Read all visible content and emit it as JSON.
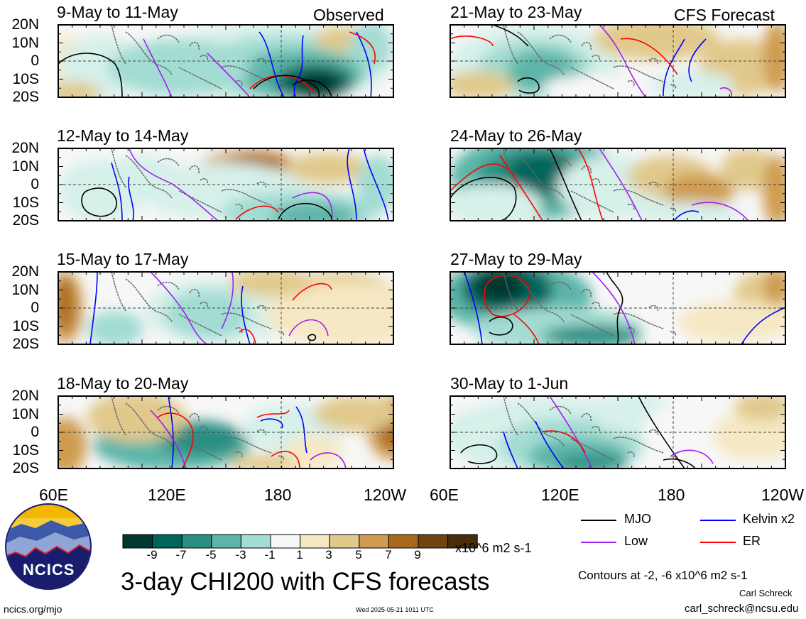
{
  "panels": [
    {
      "title": "9-May to 11-May",
      "tag": "Observed"
    },
    {
      "title": "12-May to 14-May",
      "tag": ""
    },
    {
      "title": "15-May to 17-May",
      "tag": ""
    },
    {
      "title": "18-May to 20-May",
      "tag": ""
    },
    {
      "title": "21-May to 23-May",
      "tag": "CFS Forecast"
    },
    {
      "title": "24-May to 26-May",
      "tag": ""
    },
    {
      "title": "27-May to 29-May",
      "tag": ""
    },
    {
      "title": "30-May to 1-Jun",
      "tag": ""
    }
  ],
  "lat_labels": [
    "20N",
    "10N",
    "0",
    "10S",
    "20S"
  ],
  "lon_labels_left": [
    "60E",
    "120E",
    "180",
    "120W"
  ],
  "lon_labels_right": [
    "60E",
    "120E",
    "180",
    "120W"
  ],
  "colorbar": {
    "labels": [
      "-9",
      "-7",
      "-5",
      "-3",
      "-1",
      "1",
      "3",
      "5",
      "7",
      "9"
    ],
    "colors": [
      "#00382f",
      "#00655b",
      "#2a8f83",
      "#5cb5a8",
      "#a2dcd2",
      "#d6f0ea",
      "#f7f7f7",
      "#f6e8c3",
      "#e1c98c",
      "#cf9c50",
      "#a9691d",
      "#6e4410",
      "#4a2d0a"
    ],
    "units": "x10^6 m2 s-1"
  },
  "legend": [
    {
      "label": "MJO",
      "color": "#000000"
    },
    {
      "label": "Kelvin x2",
      "color": "#0000ff"
    },
    {
      "label": "Low",
      "color": "#a020f0"
    },
    {
      "label": "ER",
      "color": "#ff0000"
    }
  ],
  "main_title": "3-day CHI200 with CFS forecasts",
  "contours_note": "Contours at -2, -6 x10^6 m2 s-1",
  "logo_text": "NCICS",
  "site_url": "ncics.org/mjo",
  "timestamp": "Wed 2025-05-21 1011 UTC",
  "author": "Carl Schreck",
  "email": "carl_schreck@ncsu.edu"
}
